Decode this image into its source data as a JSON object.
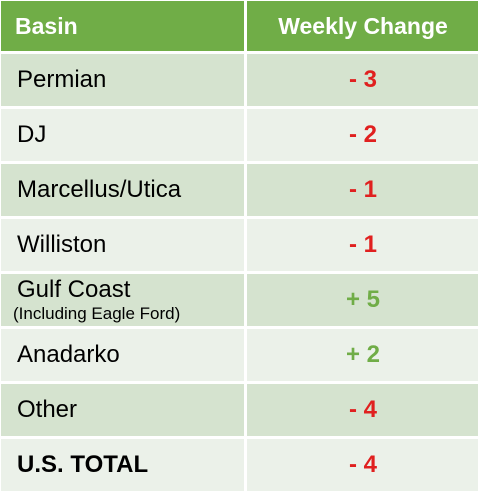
{
  "table": {
    "header": [
      "Basin",
      "Weekly Change"
    ],
    "rows": [
      {
        "basin": "Permian",
        "change": "- 3"
      },
      {
        "basin": "DJ",
        "change": "- 2"
      },
      {
        "basin": "Marcellus/Utica",
        "change": "- 1"
      },
      {
        "basin": "Williston",
        "change": "- 1"
      },
      {
        "basin": "Gulf Coast",
        "note": "(Including Eagle Ford)",
        "change": "+ 5"
      },
      {
        "basin": "Anadarko",
        "change": "+ 2"
      },
      {
        "basin": "Other",
        "change": "- 4"
      }
    ],
    "total": {
      "basin": "U.S. TOTAL",
      "change": "- 4"
    }
  }
}
